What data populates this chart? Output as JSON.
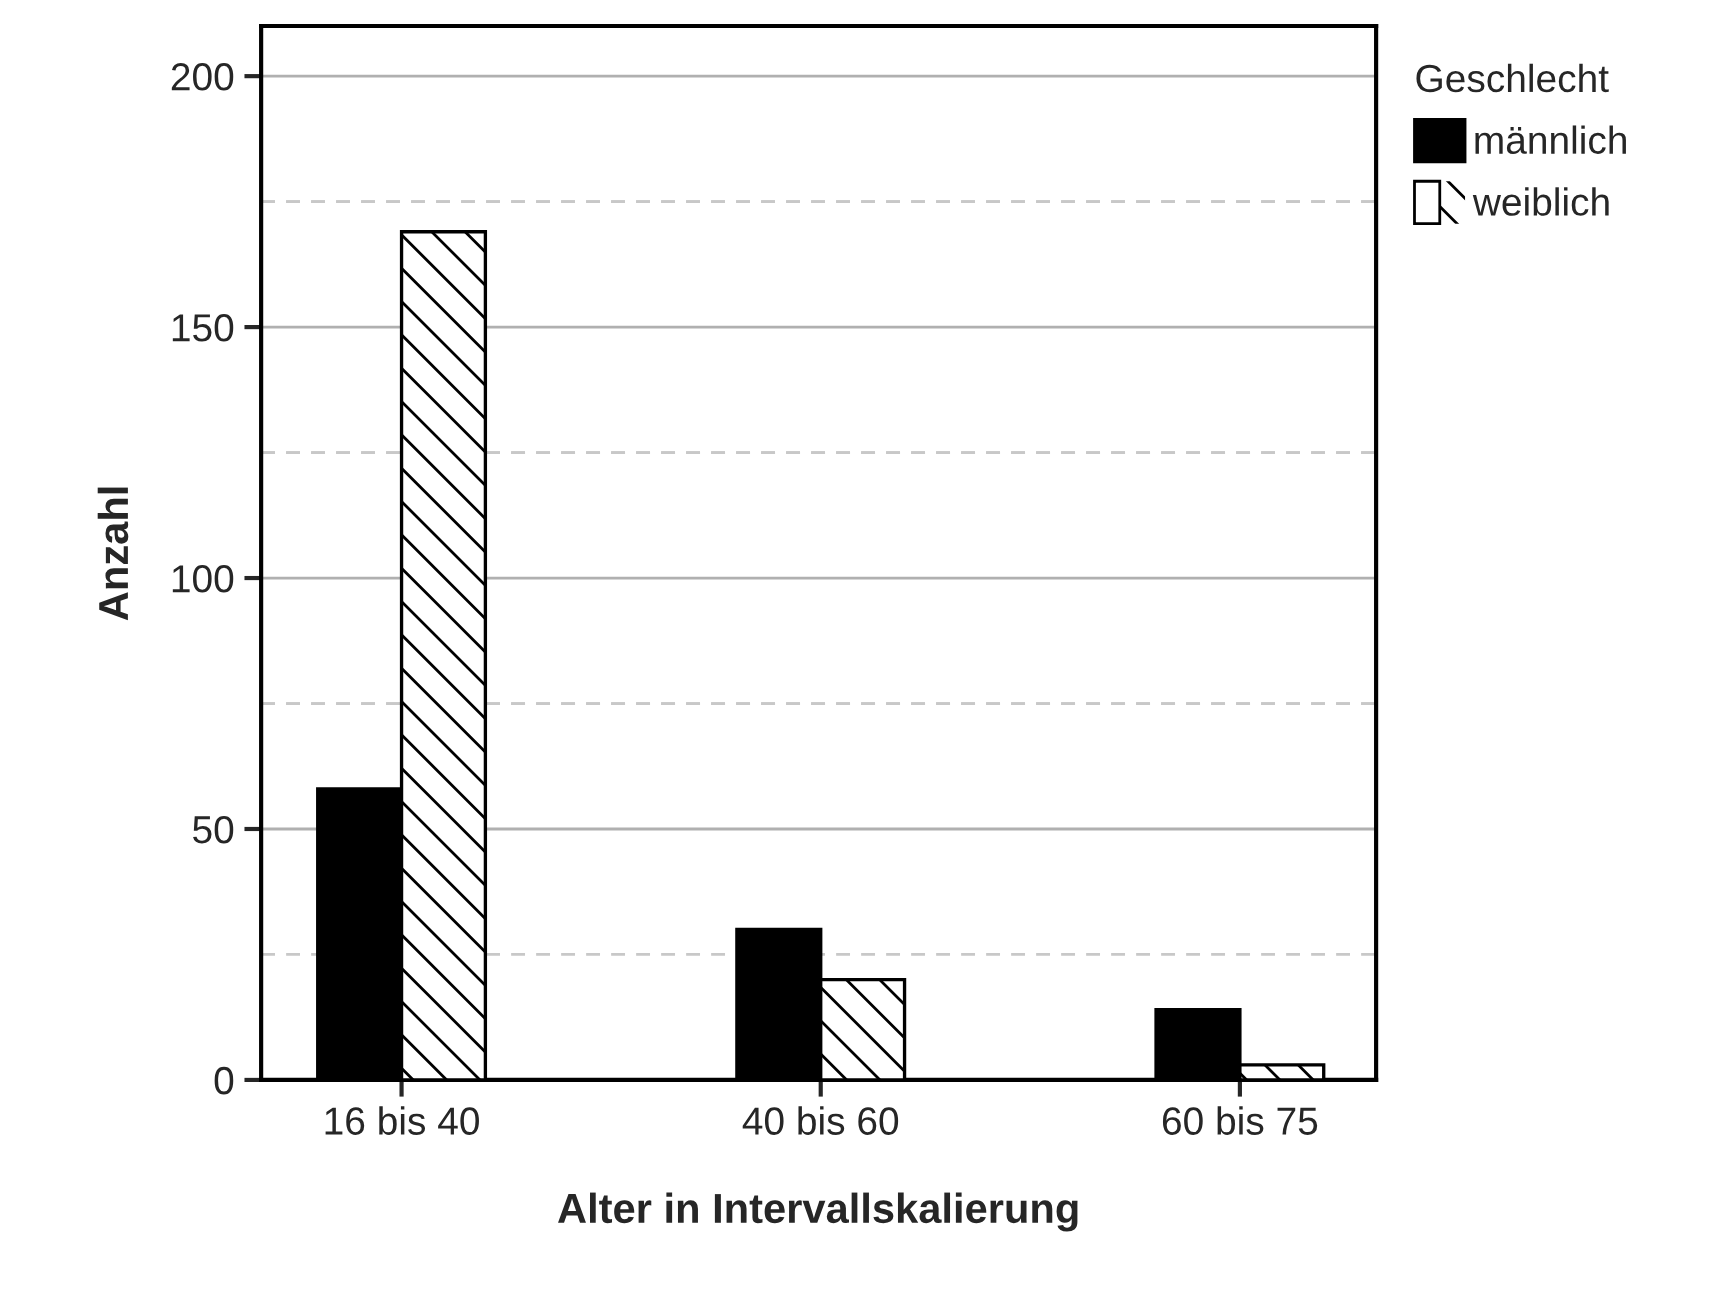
{
  "chart_data": {
    "type": "bar",
    "xlabel": "Alter in Intervallskalierung",
    "ylabel": "Anzahl",
    "legend_title": "Geschlecht",
    "categories": [
      "16 bis 40",
      "40 bis 60",
      "60 bis 75"
    ],
    "series": [
      {
        "name": "männlich",
        "color": "#000000",
        "values": [
          58,
          30,
          14
        ]
      },
      {
        "name": "weiblich",
        "color": "#ffffff",
        "values": [
          169,
          20,
          3
        ]
      }
    ],
    "ylim": [
      0,
      210
    ],
    "yticks": [
      0,
      50,
      100,
      150,
      200
    ],
    "grid": "y",
    "legend": "top right"
  }
}
